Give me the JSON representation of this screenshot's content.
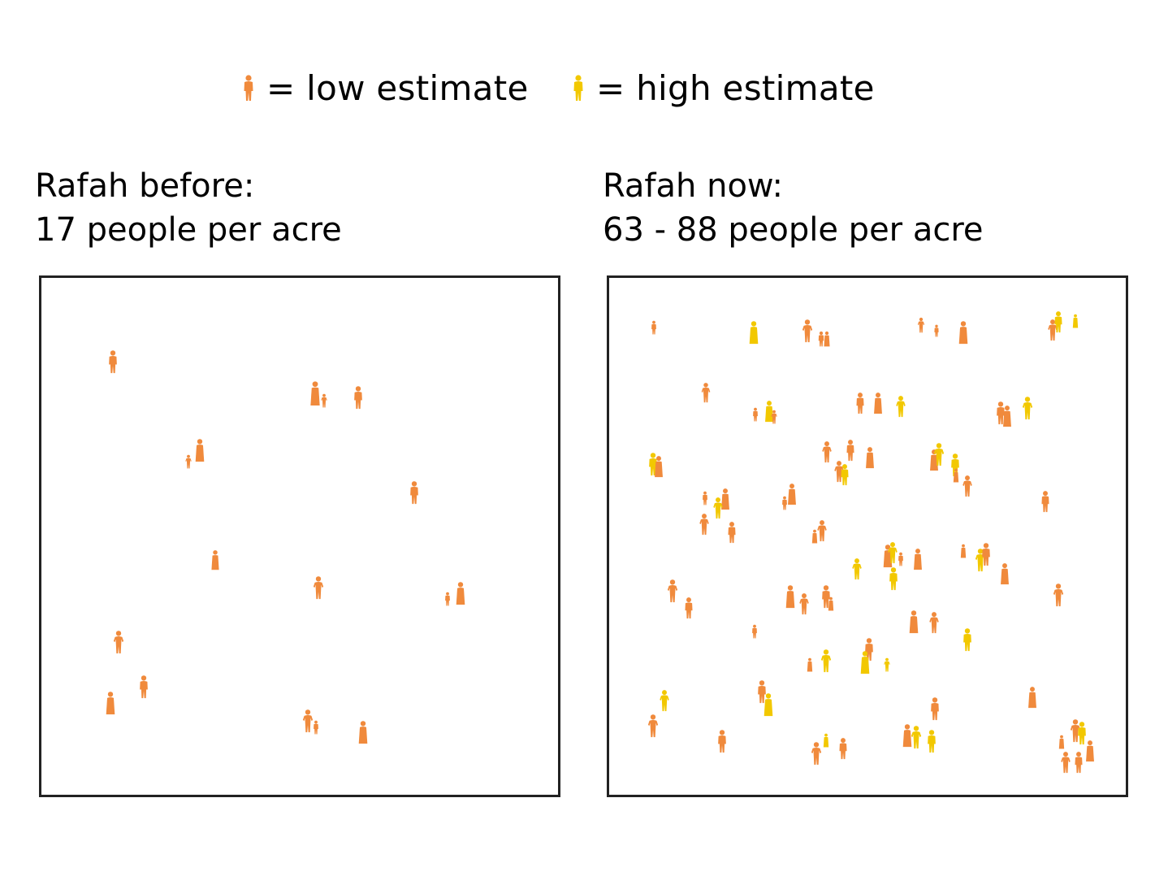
{
  "legend": {
    "low_label": "= low estimate",
    "high_label": "= high estimate",
    "low_color": "#F08A3C",
    "high_color": "#F2C800",
    "low_icon": "person-icon",
    "high_icon": "person-icon"
  },
  "panels": [
    {
      "title_line1": "Rafah before:",
      "title_line2": "17 people per acre",
      "people_low": 17,
      "people_high": 17
    },
    {
      "title_line1": "Rafah now:",
      "title_line2": "63 - 88 people per acre",
      "people_low": 63,
      "people_high": 88
    }
  ]
}
